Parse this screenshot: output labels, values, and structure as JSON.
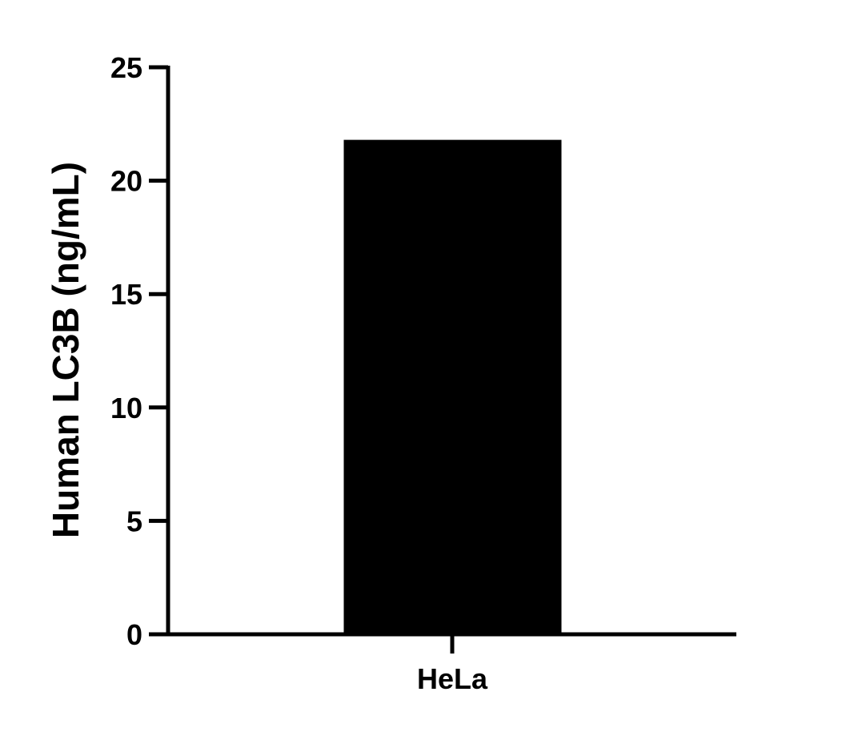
{
  "chart_data": {
    "type": "bar",
    "categories": [
      "HeLa"
    ],
    "values": [
      21.8
    ],
    "title": "",
    "xlabel": "",
    "ylabel": "Human LC3B (ng/mL)",
    "ylim": [
      0,
      25
    ],
    "yticks": [
      "0",
      "5",
      "10",
      "15",
      "20",
      "25"
    ],
    "grid": false,
    "bar_color": "#000000"
  }
}
